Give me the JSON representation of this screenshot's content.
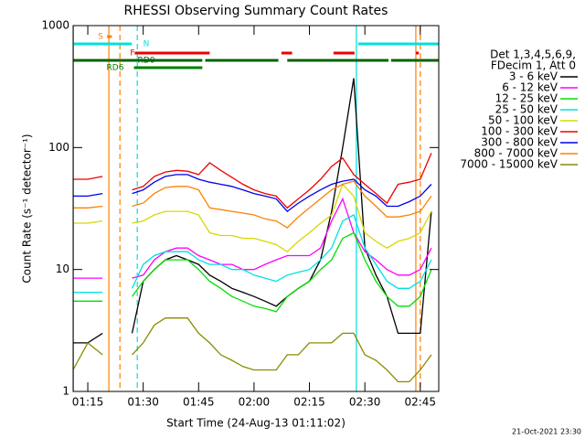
{
  "chart_data": {
    "type": "line",
    "title": "RHESSI Observing Summary Count Rates",
    "x_label": "Start Time (24-Aug-13 01:11:02)",
    "y_label": "Count Rate (s⁻¹ detector⁻¹)",
    "footer": "21-Oct-2021 23:30",
    "legend_header": [
      "Det 1,3,4,5,6,9,",
      "FDecim 1, Att 0"
    ],
    "log_y": true,
    "xlim": [
      71.03,
      170
    ],
    "xticks": [
      {
        "value": 75,
        "label": "01:15"
      },
      {
        "value": 90,
        "label": "01:30"
      },
      {
        "value": 105,
        "label": "01:45"
      },
      {
        "value": 120,
        "label": "02:00"
      },
      {
        "value": 135,
        "label": "02:15"
      },
      {
        "value": 150,
        "label": "02:30"
      },
      {
        "value": 165,
        "label": "02:45"
      }
    ],
    "ylim": [
      1,
      1000
    ],
    "yticks": [
      1,
      10,
      100,
      1000
    ],
    "x": [
      71,
      75,
      79,
      83,
      87,
      90,
      93,
      96,
      99,
      102,
      105,
      108,
      111,
      114,
      117,
      120,
      123,
      126,
      129,
      132,
      135,
      138,
      141,
      144,
      147,
      150,
      153,
      156,
      159,
      162,
      165,
      168
    ],
    "series": [
      {
        "name": "3 - 6 keV",
        "color": "#000000",
        "values": [
          2.5,
          2.5,
          3,
          null,
          3,
          8,
          10,
          12,
          13,
          12,
          11,
          9,
          8,
          7,
          6.5,
          6,
          5.5,
          5,
          6,
          7,
          8,
          12,
          30,
          100,
          370,
          15,
          9,
          6,
          3,
          3,
          3,
          30
        ]
      },
      {
        "name": "6 - 12 keV",
        "color": "#ff00ff",
        "values": [
          8.5,
          8.5,
          8.5,
          null,
          8.5,
          9,
          12,
          14,
          15,
          15,
          13,
          12,
          11,
          11,
          10,
          10,
          11,
          12,
          13,
          13,
          13,
          15,
          25,
          38,
          20,
          14,
          12,
          10,
          9,
          9,
          10,
          15
        ]
      },
      {
        "name": "12 - 25 keV",
        "color": "#00e000",
        "values": [
          5.5,
          5.5,
          5.5,
          null,
          6,
          8,
          10,
          12,
          12,
          12,
          10,
          8,
          7,
          6,
          5.5,
          5,
          4.8,
          4.5,
          6,
          7,
          8,
          10,
          12,
          18,
          20,
          12,
          8,
          6,
          5,
          5,
          6,
          10
        ]
      },
      {
        "name": "25 - 50 keV",
        "color": "#00e0e0",
        "values": [
          6.5,
          6.5,
          6.5,
          null,
          7,
          11,
          13,
          14,
          14,
          14,
          12,
          11,
          11,
          10,
          10,
          9,
          8.5,
          8,
          9,
          9.5,
          10,
          12,
          15,
          25,
          28,
          15,
          11,
          8,
          7,
          7,
          8,
          12
        ]
      },
      {
        "name": "50 - 100 keV",
        "color": "#d8d800",
        "values": [
          24,
          24,
          25,
          null,
          24,
          25,
          28,
          30,
          30,
          30,
          28,
          20,
          19,
          19,
          18,
          18,
          17,
          16,
          14,
          17,
          20,
          24,
          28,
          50,
          40,
          20,
          17,
          15,
          17,
          18,
          20,
          30
        ]
      },
      {
        "name": "100 - 300 keV",
        "color": "#ee0000",
        "values": [
          55,
          55,
          58,
          null,
          45,
          48,
          58,
          63,
          65,
          64,
          60,
          75,
          65,
          57,
          50,
          45,
          42,
          40,
          32,
          38,
          45,
          55,
          70,
          82,
          60,
          50,
          42,
          35,
          50,
          52,
          55,
          90
        ]
      },
      {
        "name": "300 - 800 keV",
        "color": "#0000ee",
        "values": [
          40,
          40,
          42,
          null,
          42,
          45,
          52,
          58,
          60,
          60,
          55,
          52,
          50,
          48,
          45,
          42,
          40,
          38,
          30,
          35,
          40,
          45,
          50,
          53,
          55,
          45,
          40,
          33,
          33,
          36,
          40,
          50
        ]
      },
      {
        "name": "800 - 7000 keV",
        "color": "#ff8000",
        "values": [
          32,
          32,
          33,
          null,
          33,
          35,
          42,
          47,
          48,
          48,
          45,
          32,
          31,
          30,
          29,
          28,
          26,
          25,
          22,
          27,
          32,
          38,
          45,
          50,
          53,
          40,
          33,
          27,
          27,
          28,
          30,
          40
        ]
      },
      {
        "name": "7000 - 15000 keV",
        "color": "#8b8b00",
        "values": [
          1.5,
          2.5,
          2,
          null,
          2,
          2.5,
          3.5,
          4,
          4,
          4,
          3,
          2.5,
          2,
          1.8,
          1.6,
          1.5,
          1.5,
          1.5,
          2,
          2,
          2.5,
          2.5,
          2.5,
          3,
          3,
          2,
          1.8,
          1.5,
          1.2,
          1.2,
          1.5,
          2
        ]
      }
    ],
    "flags": [
      {
        "name": "S",
        "color": "#ff8000",
        "segments": [
          [
            80.2,
            81.5
          ]
        ]
      },
      {
        "name": "N",
        "color": "#00e0e0",
        "segments": [
          [
            71,
            86.9
          ],
          [
            148.2,
            170
          ]
        ]
      },
      {
        "name": "F",
        "color": "#ee0000",
        "segments": [
          [
            87.7,
            108
          ],
          [
            127.4,
            130.3
          ],
          [
            141.5,
            147.2
          ],
          [
            163.8,
            164.6
          ]
        ]
      },
      {
        "name": "RD0",
        "color": "#006400",
        "segments": [
          [
            71,
            106
          ],
          [
            106.8,
            126.6
          ],
          [
            129,
            156.4
          ],
          [
            157.1,
            170
          ]
        ]
      },
      {
        "name": "RD6",
        "color": "#008000",
        "segments": [
          [
            87.5,
            106
          ]
        ]
      }
    ],
    "vlines": [
      {
        "x": 71.1,
        "color": "#00e0e0",
        "dashed": false
      },
      {
        "x": 80.7,
        "color": "#ff8000",
        "dashed": false
      },
      {
        "x": 83.7,
        "color": "#ff8000",
        "dashed": true
      },
      {
        "x": 88.4,
        "color": "#00e0e0",
        "dashed": true
      },
      {
        "x": 147.7,
        "color": "#00e0e0",
        "dashed": false
      },
      {
        "x": 163.8,
        "color": "#ff8000",
        "dashed": false
      },
      {
        "x": 165,
        "color": "#ff8000",
        "dashed": true
      }
    ]
  }
}
